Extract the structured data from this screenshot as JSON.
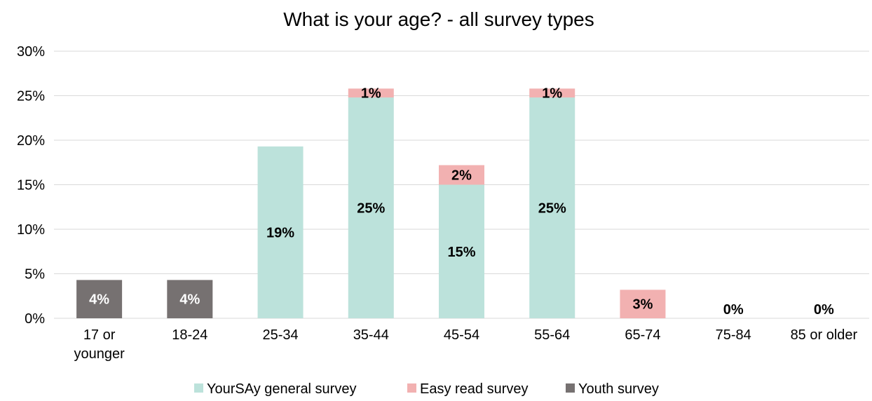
{
  "chart_data": {
    "type": "bar",
    "stacked": true,
    "title": "What is your age? - all survey types",
    "categories": [
      [
        "17 or",
        "younger"
      ],
      [
        "18-24"
      ],
      [
        "25-34"
      ],
      [
        "35-44"
      ],
      [
        "45-54"
      ],
      [
        "55-64"
      ],
      [
        "65-74"
      ],
      [
        "75-84"
      ],
      [
        "85 or older"
      ]
    ],
    "series": [
      {
        "name": "YourSAy general survey",
        "color": "#bce2db",
        "values": [
          0,
          0,
          19.3,
          24.8,
          15.0,
          24.8,
          0,
          0,
          0
        ],
        "labels": [
          "",
          "",
          "19%",
          "25%",
          "15%",
          "25%",
          "",
          "",
          ""
        ]
      },
      {
        "name": "Easy read survey",
        "color": "#f2b1b1",
        "values": [
          0,
          0,
          0,
          1.0,
          2.2,
          1.0,
          3.2,
          0,
          0
        ],
        "labels": [
          "",
          "",
          "",
          "1%",
          "2%",
          "1%",
          "3%",
          "0%",
          "0%"
        ]
      },
      {
        "name": "Youth survey",
        "color": "#767171",
        "values": [
          4.3,
          4.3,
          0,
          0,
          0,
          0,
          0,
          0,
          0
        ],
        "labels": [
          "4%",
          "4%",
          "",
          "",
          "",
          "",
          "",
          "",
          ""
        ]
      }
    ],
    "ylim": [
      0,
      30
    ],
    "yticks": [
      "0%",
      "5%",
      "10%",
      "15%",
      "20%",
      "25%",
      "30%"
    ],
    "grid": true,
    "legend_position": "bottom"
  }
}
